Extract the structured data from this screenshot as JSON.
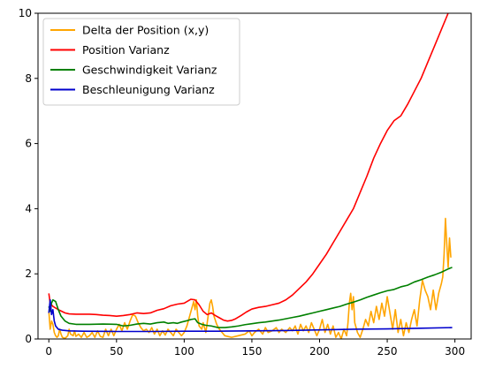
{
  "chart_data": {
    "type": "line",
    "title": "",
    "xlabel": "",
    "ylabel": "",
    "xlim": [
      -8,
      312
    ],
    "ylim": [
      0,
      10
    ],
    "x_ticks": [
      0,
      50,
      100,
      150,
      200,
      250,
      300
    ],
    "y_ticks": [
      0,
      2,
      4,
      6,
      8,
      10
    ],
    "grid": false,
    "legend_position": "top-left",
    "series": [
      {
        "name": "Delta der Position (x,y)",
        "color": "#ffa500",
        "points": [
          [
            0,
            0.85
          ],
          [
            1,
            0.3
          ],
          [
            2,
            0.55
          ],
          [
            3,
            0.45
          ],
          [
            4,
            0.2
          ],
          [
            5,
            0.1
          ],
          [
            6,
            0.05
          ],
          [
            7,
            0.1
          ],
          [
            8,
            0.3
          ],
          [
            9,
            0.15
          ],
          [
            10,
            0.05
          ],
          [
            12,
            0.02
          ],
          [
            14,
            0.1
          ],
          [
            15,
            0.3
          ],
          [
            16,
            0.15
          ],
          [
            18,
            0.1
          ],
          [
            19,
            0.25
          ],
          [
            20,
            0.08
          ],
          [
            22,
            0.15
          ],
          [
            24,
            0.05
          ],
          [
            26,
            0.2
          ],
          [
            28,
            0.05
          ],
          [
            30,
            0.1
          ],
          [
            32,
            0.2
          ],
          [
            34,
            0.05
          ],
          [
            36,
            0.25
          ],
          [
            38,
            0.08
          ],
          [
            40,
            0.05
          ],
          [
            42,
            0.3
          ],
          [
            44,
            0.1
          ],
          [
            46,
            0.3
          ],
          [
            48,
            0.1
          ],
          [
            50,
            0.3
          ],
          [
            52,
            0.45
          ],
          [
            54,
            0.25
          ],
          [
            56,
            0.5
          ],
          [
            58,
            0.3
          ],
          [
            60,
            0.55
          ],
          [
            62,
            0.75
          ],
          [
            64,
            0.7
          ],
          [
            66,
            0.5
          ],
          [
            68,
            0.35
          ],
          [
            70,
            0.25
          ],
          [
            72,
            0.3
          ],
          [
            74,
            0.2
          ],
          [
            76,
            0.35
          ],
          [
            78,
            0.15
          ],
          [
            80,
            0.3
          ],
          [
            82,
            0.1
          ],
          [
            84,
            0.25
          ],
          [
            86,
            0.12
          ],
          [
            88,
            0.3
          ],
          [
            90,
            0.2
          ],
          [
            92,
            0.1
          ],
          [
            94,
            0.3
          ],
          [
            96,
            0.2
          ],
          [
            98,
            0.1
          ],
          [
            100,
            0.2
          ],
          [
            102,
            0.4
          ],
          [
            104,
            0.7
          ],
          [
            106,
            1.0
          ],
          [
            107,
            1.15
          ],
          [
            108,
            0.9
          ],
          [
            109,
            1.2
          ],
          [
            110,
            0.7
          ],
          [
            111,
            0.4
          ],
          [
            113,
            0.3
          ],
          [
            114,
            0.5
          ],
          [
            116,
            0.2
          ],
          [
            118,
            0.8
          ],
          [
            119,
            1.1
          ],
          [
            120,
            1.2
          ],
          [
            121,
            1.0
          ],
          [
            122,
            0.7
          ],
          [
            124,
            0.45
          ],
          [
            126,
            0.3
          ],
          [
            128,
            0.2
          ],
          [
            130,
            0.1
          ],
          [
            132,
            0.08
          ],
          [
            135,
            0.05
          ],
          [
            140,
            0.1
          ],
          [
            145,
            0.15
          ],
          [
            148,
            0.25
          ],
          [
            150,
            0.1
          ],
          [
            152,
            0.2
          ],
          [
            155,
            0.3
          ],
          [
            158,
            0.15
          ],
          [
            160,
            0.35
          ],
          [
            162,
            0.2
          ],
          [
            165,
            0.25
          ],
          [
            168,
            0.35
          ],
          [
            170,
            0.2
          ],
          [
            172,
            0.3
          ],
          [
            175,
            0.2
          ],
          [
            178,
            0.35
          ],
          [
            180,
            0.25
          ],
          [
            182,
            0.4
          ],
          [
            184,
            0.15
          ],
          [
            186,
            0.45
          ],
          [
            188,
            0.25
          ],
          [
            190,
            0.4
          ],
          [
            192,
            0.2
          ],
          [
            194,
            0.5
          ],
          [
            196,
            0.3
          ],
          [
            198,
            0.1
          ],
          [
            200,
            0.3
          ],
          [
            202,
            0.6
          ],
          [
            204,
            0.2
          ],
          [
            206,
            0.45
          ],
          [
            208,
            0.15
          ],
          [
            210,
            0.4
          ],
          [
            212,
            0.05
          ],
          [
            214,
            0.2
          ],
          [
            216,
            0.0
          ],
          [
            218,
            0.3
          ],
          [
            220,
            0.1
          ],
          [
            221,
            0.5
          ],
          [
            222,
            1.1
          ],
          [
            223,
            1.4
          ],
          [
            224,
            0.9
          ],
          [
            225,
            1.3
          ],
          [
            226,
            0.5
          ],
          [
            228,
            0.2
          ],
          [
            230,
            0.05
          ],
          [
            232,
            0.3
          ],
          [
            234,
            0.6
          ],
          [
            236,
            0.4
          ],
          [
            238,
            0.85
          ],
          [
            240,
            0.5
          ],
          [
            242,
            1.0
          ],
          [
            244,
            0.6
          ],
          [
            246,
            1.1
          ],
          [
            248,
            0.7
          ],
          [
            250,
            1.3
          ],
          [
            252,
            0.8
          ],
          [
            254,
            0.3
          ],
          [
            256,
            0.9
          ],
          [
            258,
            0.2
          ],
          [
            260,
            0.6
          ],
          [
            262,
            0.1
          ],
          [
            264,
            0.5
          ],
          [
            266,
            0.2
          ],
          [
            268,
            0.6
          ],
          [
            270,
            0.9
          ],
          [
            272,
            0.4
          ],
          [
            274,
            1.2
          ],
          [
            276,
            1.8
          ],
          [
            278,
            1.5
          ],
          [
            280,
            1.3
          ],
          [
            282,
            0.9
          ],
          [
            284,
            1.5
          ],
          [
            286,
            0.9
          ],
          [
            288,
            1.4
          ],
          [
            290,
            1.7
          ],
          [
            291,
            1.9
          ],
          [
            292,
            2.6
          ],
          [
            293,
            3.7
          ],
          [
            294,
            2.9
          ],
          [
            295,
            2.2
          ],
          [
            296,
            3.1
          ],
          [
            297,
            2.5
          ]
        ]
      },
      {
        "name": "Position Varianz",
        "color": "#ff0000",
        "points": [
          [
            0,
            1.4
          ],
          [
            1,
            1.1
          ],
          [
            3,
            1.0
          ],
          [
            5,
            0.95
          ],
          [
            8,
            0.88
          ],
          [
            12,
            0.8
          ],
          [
            15,
            0.77
          ],
          [
            20,
            0.76
          ],
          [
            25,
            0.76
          ],
          [
            30,
            0.76
          ],
          [
            35,
            0.75
          ],
          [
            40,
            0.73
          ],
          [
            45,
            0.72
          ],
          [
            50,
            0.7
          ],
          [
            55,
            0.72
          ],
          [
            60,
            0.75
          ],
          [
            65,
            0.8
          ],
          [
            70,
            0.78
          ],
          [
            75,
            0.8
          ],
          [
            80,
            0.88
          ],
          [
            85,
            0.93
          ],
          [
            90,
            1.02
          ],
          [
            95,
            1.07
          ],
          [
            100,
            1.1
          ],
          [
            105,
            1.22
          ],
          [
            108,
            1.2
          ],
          [
            111,
            1.05
          ],
          [
            114,
            0.85
          ],
          [
            117,
            0.75
          ],
          [
            120,
            0.8
          ],
          [
            123,
            0.72
          ],
          [
            126,
            0.65
          ],
          [
            129,
            0.58
          ],
          [
            132,
            0.55
          ],
          [
            135,
            0.57
          ],
          [
            138,
            0.62
          ],
          [
            142,
            0.72
          ],
          [
            146,
            0.83
          ],
          [
            150,
            0.92
          ],
          [
            155,
            0.97
          ],
          [
            160,
            1.0
          ],
          [
            165,
            1.05
          ],
          [
            170,
            1.1
          ],
          [
            175,
            1.2
          ],
          [
            180,
            1.35
          ],
          [
            185,
            1.55
          ],
          [
            190,
            1.75
          ],
          [
            195,
            2.0
          ],
          [
            200,
            2.3
          ],
          [
            205,
            2.6
          ],
          [
            210,
            2.95
          ],
          [
            215,
            3.3
          ],
          [
            220,
            3.65
          ],
          [
            225,
            4.0
          ],
          [
            230,
            4.5
          ],
          [
            235,
            5.0
          ],
          [
            240,
            5.55
          ],
          [
            245,
            6.0
          ],
          [
            250,
            6.4
          ],
          [
            255,
            6.7
          ],
          [
            260,
            6.85
          ],
          [
            265,
            7.2
          ],
          [
            270,
            7.6
          ],
          [
            275,
            8.0
          ],
          [
            280,
            8.5
          ],
          [
            285,
            9.0
          ],
          [
            290,
            9.5
          ],
          [
            295,
            10.0
          ],
          [
            298,
            10.6
          ]
        ]
      },
      {
        "name": "Geschwindigkeit Varianz",
        "color": "#008000",
        "points": [
          [
            0,
            1.0
          ],
          [
            1,
            0.85
          ],
          [
            2,
            1.1
          ],
          [
            3,
            1.2
          ],
          [
            5,
            1.15
          ],
          [
            7,
            0.9
          ],
          [
            9,
            0.7
          ],
          [
            12,
            0.55
          ],
          [
            15,
            0.48
          ],
          [
            20,
            0.45
          ],
          [
            30,
            0.45
          ],
          [
            40,
            0.46
          ],
          [
            50,
            0.45
          ],
          [
            55,
            0.4
          ],
          [
            60,
            0.42
          ],
          [
            65,
            0.46
          ],
          [
            70,
            0.48
          ],
          [
            75,
            0.46
          ],
          [
            80,
            0.5
          ],
          [
            85,
            0.52
          ],
          [
            88,
            0.48
          ],
          [
            92,
            0.5
          ],
          [
            95,
            0.48
          ],
          [
            98,
            0.52
          ],
          [
            102,
            0.56
          ],
          [
            105,
            0.6
          ],
          [
            108,
            0.62
          ],
          [
            110,
            0.5
          ],
          [
            113,
            0.45
          ],
          [
            116,
            0.42
          ],
          [
            120,
            0.4
          ],
          [
            125,
            0.35
          ],
          [
            130,
            0.35
          ],
          [
            135,
            0.37
          ],
          [
            140,
            0.4
          ],
          [
            145,
            0.44
          ],
          [
            150,
            0.47
          ],
          [
            155,
            0.5
          ],
          [
            160,
            0.52
          ],
          [
            165,
            0.55
          ],
          [
            170,
            0.58
          ],
          [
            175,
            0.62
          ],
          [
            180,
            0.66
          ],
          [
            185,
            0.7
          ],
          [
            190,
            0.75
          ],
          [
            195,
            0.8
          ],
          [
            200,
            0.85
          ],
          [
            205,
            0.9
          ],
          [
            210,
            0.95
          ],
          [
            215,
            1.0
          ],
          [
            220,
            1.07
          ],
          [
            225,
            1.13
          ],
          [
            230,
            1.2
          ],
          [
            235,
            1.28
          ],
          [
            240,
            1.35
          ],
          [
            245,
            1.42
          ],
          [
            250,
            1.48
          ],
          [
            255,
            1.52
          ],
          [
            260,
            1.6
          ],
          [
            265,
            1.65
          ],
          [
            270,
            1.75
          ],
          [
            275,
            1.82
          ],
          [
            280,
            1.9
          ],
          [
            285,
            1.97
          ],
          [
            290,
            2.05
          ],
          [
            295,
            2.15
          ],
          [
            298,
            2.2
          ]
        ]
      },
      {
        "name": "Beschleunigung Varianz",
        "color": "#0000cd",
        "points": [
          [
            0,
            0.8
          ],
          [
            1,
            1.2
          ],
          [
            2,
            0.75
          ],
          [
            3,
            0.9
          ],
          [
            4,
            0.55
          ],
          [
            5,
            0.4
          ],
          [
            7,
            0.3
          ],
          [
            10,
            0.27
          ],
          [
            15,
            0.25
          ],
          [
            25,
            0.24
          ],
          [
            50,
            0.23
          ],
          [
            75,
            0.23
          ],
          [
            100,
            0.24
          ],
          [
            125,
            0.24
          ],
          [
            150,
            0.25
          ],
          [
            175,
            0.26
          ],
          [
            200,
            0.28
          ],
          [
            225,
            0.3
          ],
          [
            250,
            0.31
          ],
          [
            275,
            0.33
          ],
          [
            298,
            0.35
          ]
        ]
      }
    ]
  }
}
